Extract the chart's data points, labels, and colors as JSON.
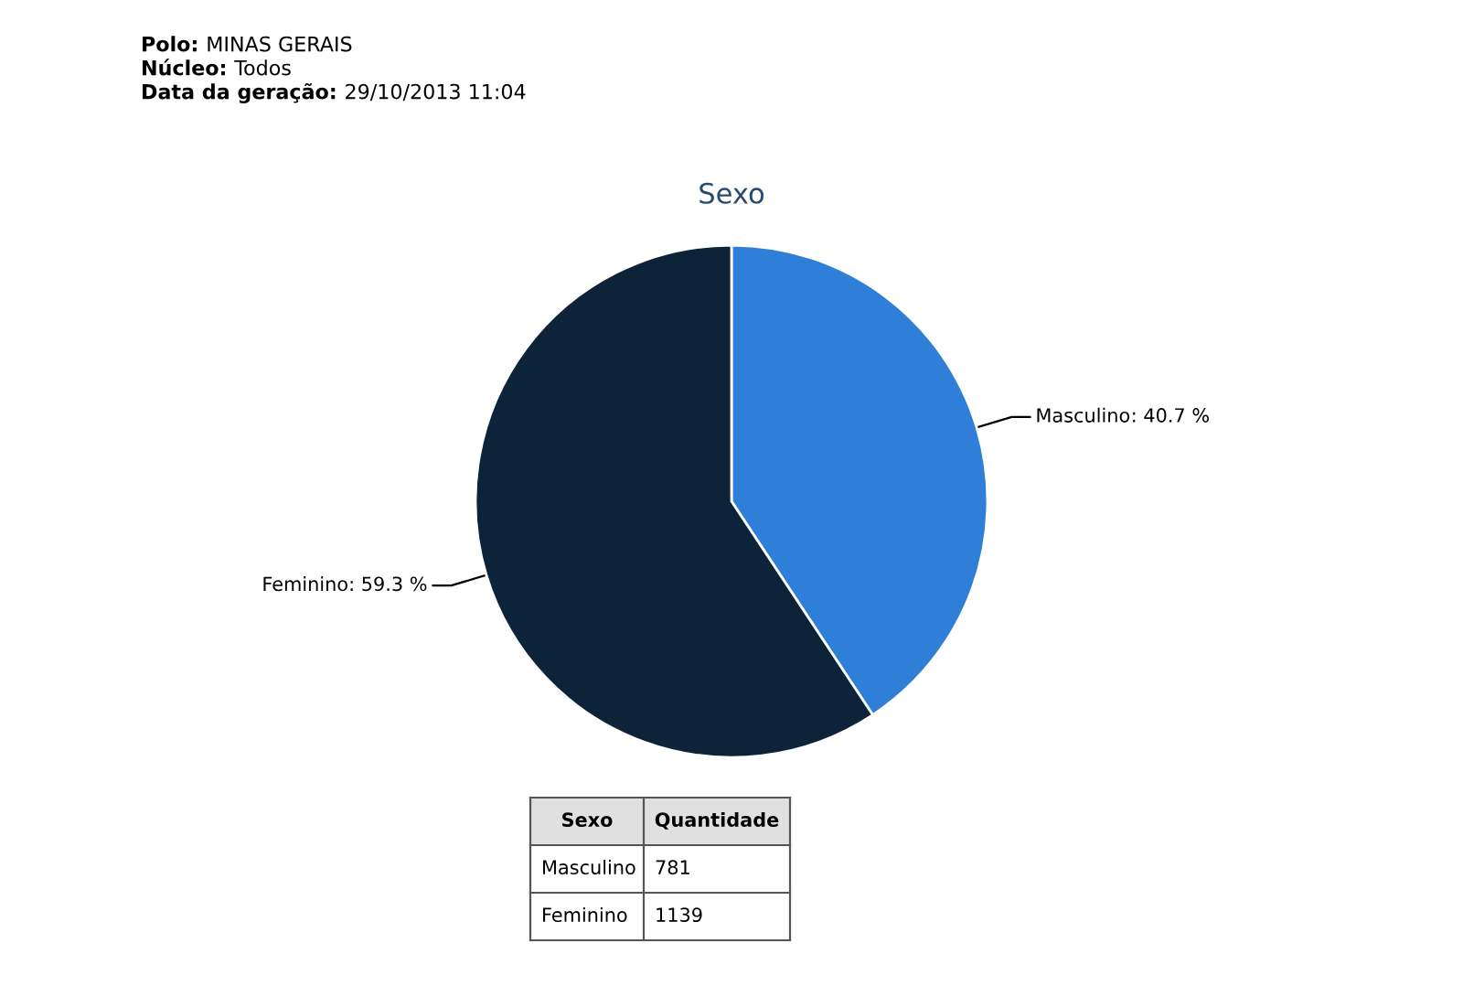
{
  "chart_data": {
    "type": "pie",
    "title": "Sexo",
    "categories": [
      "Masculino",
      "Feminino"
    ],
    "values": [
      40.7,
      59.3
    ],
    "colors": [
      "#2f7ed8",
      "#0d233a"
    ],
    "value_labels": [
      ": 40.7 %",
      ": 59.3 %"
    ],
    "annotations": [
      "Polo: MINAS GERAIS",
      "Núcleo: Todos",
      "Data da geração: 29/10/2013 11:04",
      "Sexo",
      "Quantidade",
      "Masculino",
      "781",
      "Feminino",
      "1139"
    ]
  }
}
